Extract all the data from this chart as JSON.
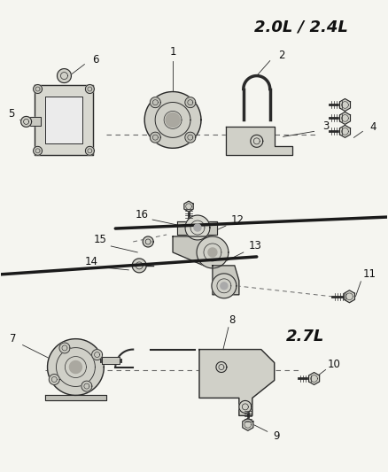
{
  "bg_color": "#f5f5f0",
  "line_color": "#2a2a2a",
  "text_color": "#111111",
  "title_2L": "2.0L / 2.4L",
  "title_27L": "2.7L",
  "title_fontsize": 13,
  "label_fontsize": 8.5,
  "figsize": [
    4.38,
    5.33
  ],
  "dpi": 100,
  "part_color": "#c8c8c0",
  "part_edge": "#2a2a2a",
  "shadow_color": "#b0b0a8",
  "bolt_face": "#d0d0c8",
  "divline1": [
    [
      0.0,
      0.595
    ],
    [
      0.65,
      0.61
    ]
  ],
  "divline2": [
    [
      0.32,
      0.465
    ],
    [
      1.0,
      0.455
    ]
  ]
}
